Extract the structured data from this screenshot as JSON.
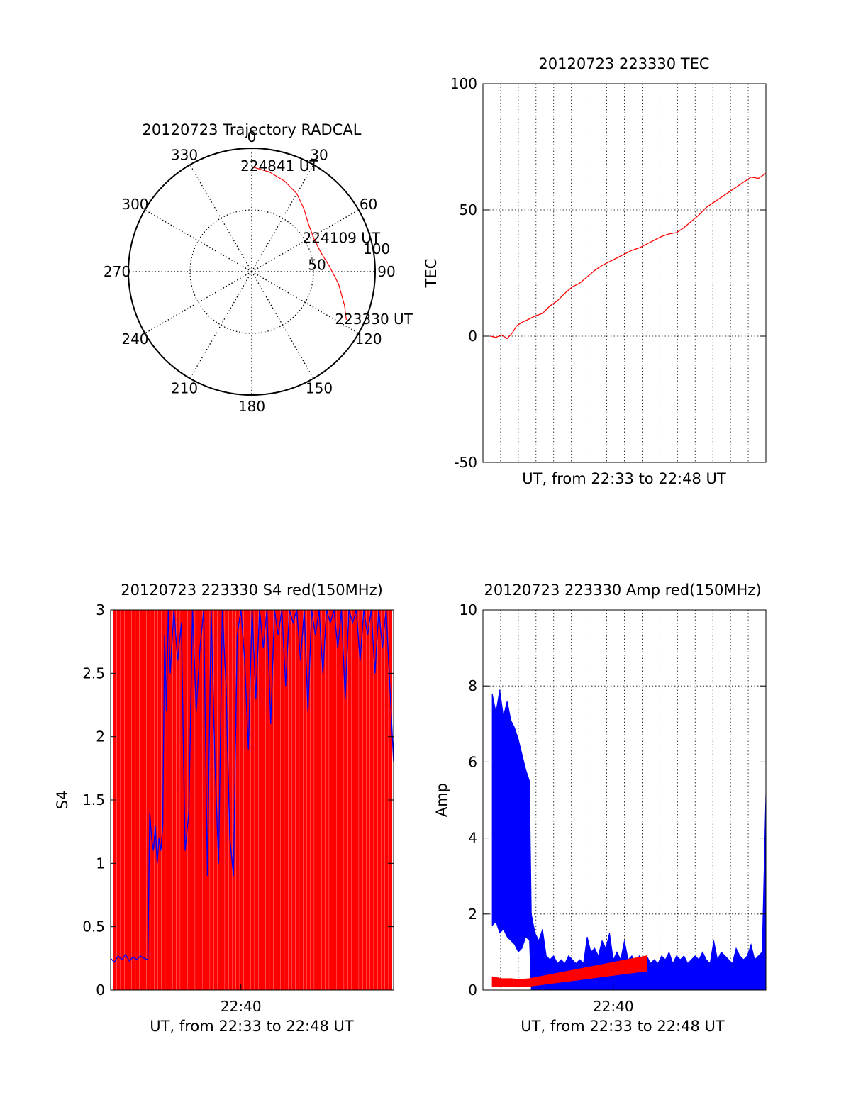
{
  "chart_data": [
    {
      "type": "polar",
      "title": "20120723 Trajectory RADCAL",
      "angle_labels": [
        "0",
        "30",
        "60",
        "90",
        "120",
        "150",
        "180",
        "210",
        "240",
        "270",
        "300",
        "330"
      ],
      "radial_labels": [
        "50",
        "100"
      ],
      "r_max": 100,
      "track": {
        "color": "#ff0000",
        "points": [
          {
            "az": 0,
            "r": 85
          },
          {
            "az": 10,
            "r": 82
          },
          {
            "az": 20,
            "r": 78
          },
          {
            "az": 30,
            "r": 73
          },
          {
            "az": 40,
            "r": 66
          },
          {
            "az": 50,
            "r": 60
          },
          {
            "az": 62,
            "r": 57
          },
          {
            "az": 74,
            "r": 58
          },
          {
            "az": 86,
            "r": 63
          },
          {
            "az": 98,
            "r": 71
          },
          {
            "az": 110,
            "r": 80
          },
          {
            "az": 117,
            "r": 86
          }
        ],
        "labels": [
          {
            "text": "224841 UT",
            "az": 0,
            "r": 85
          },
          {
            "text": "224109 UT",
            "az": 62,
            "r": 57
          },
          {
            "text": "223330 UT",
            "az": 117,
            "r": 86
          }
        ]
      }
    },
    {
      "type": "line",
      "title": "20120723 223330 TEC",
      "xlabel": "UT, from 22:33 to 22:48 UT",
      "ylabel": "TEC",
      "xlim": [
        0,
        15.2
      ],
      "ylim": [
        -50,
        100
      ],
      "yticks": [
        "100",
        "50",
        "0",
        "-50"
      ],
      "ytick_values": [
        100,
        50,
        0,
        -50
      ],
      "series": [
        {
          "color": "#ff0000",
          "x": [
            0.4,
            0.7,
            1.0,
            1.3,
            1.6,
            1.8,
            2.1,
            2.4,
            2.8,
            3.2,
            3.6,
            4.0,
            4.4,
            4.8,
            5.2,
            5.6,
            6.0,
            6.4,
            6.8,
            7.2,
            7.6,
            8.0,
            8.4,
            8.8,
            9.2,
            9.6,
            10.0,
            10.4,
            10.8,
            11.2,
            11.6,
            12.0,
            12.4,
            12.8,
            13.2,
            13.6,
            14.0,
            14.4,
            14.8,
            15.2
          ],
          "y": [
            0,
            -0.5,
            0.5,
            -1,
            1.5,
            4,
            5.5,
            6.5,
            8,
            9,
            12,
            14,
            17,
            19.5,
            21,
            23.5,
            26,
            28,
            29.5,
            31,
            32.5,
            34,
            35,
            36.5,
            38,
            39.5,
            40.5,
            41,
            43,
            45.5,
            48,
            51,
            53,
            55,
            57,
            59,
            61,
            63,
            62.5,
            64.5
          ]
        }
      ]
    },
    {
      "type": "line",
      "title": "20120723 223330 S4 red(150MHz)",
      "xlabel": "UT, from 22:33 to 22:48 UT",
      "ylabel": "S4",
      "xtick_label": "22:40",
      "xtick_value": 7.0,
      "xlim": [
        0,
        15.2
      ],
      "ylim": [
        0,
        3
      ],
      "yticks": [
        "3",
        "2.5",
        "2",
        "1.5",
        "1",
        "0.5",
        "0"
      ],
      "ytick_values": [
        3,
        2.5,
        2,
        1.5,
        1,
        0.5,
        0
      ],
      "series": [
        {
          "color": "#0000ff",
          "x": [
            0.0,
            0.2,
            0.4,
            0.6,
            0.8,
            1.0,
            1.2,
            1.4,
            1.6,
            1.8,
            2.0,
            2.1,
            2.2,
            2.3,
            2.4,
            2.5,
            2.6,
            2.7,
            2.8,
            2.9,
            3.0,
            3.1,
            3.2,
            3.4,
            3.6,
            3.8,
            4.0,
            4.2,
            4.4,
            4.6,
            4.8,
            5.0,
            5.2,
            5.4,
            5.6,
            5.8,
            6.0,
            6.2,
            6.4,
            6.6,
            6.8,
            7.0,
            7.2,
            7.4,
            7.6,
            7.8,
            8.0,
            8.2,
            8.4,
            8.6,
            8.8,
            9.0,
            9.2,
            9.4,
            9.6,
            9.8,
            10.0,
            10.2,
            10.4,
            10.6,
            10.8,
            11.0,
            11.2,
            11.4,
            11.6,
            11.8,
            12.0,
            12.2,
            12.4,
            12.6,
            12.8,
            13.0,
            13.2,
            13.4,
            13.6,
            13.8,
            14.0,
            14.2,
            14.4,
            14.6,
            14.8,
            15.0,
            15.2
          ],
          "y": [
            0.25,
            0.22,
            0.27,
            0.24,
            0.28,
            0.23,
            0.26,
            0.24,
            0.27,
            0.25,
            0.24,
            1.4,
            1.2,
            1.1,
            1.3,
            1.0,
            1.2,
            1.1,
            1.3,
            2.8,
            2.2,
            3.0,
            2.5,
            3.0,
            2.6,
            2.9,
            1.1,
            1.4,
            3.0,
            2.2,
            2.7,
            3.0,
            0.9,
            3.0,
            1.8,
            1.0,
            3.0,
            2.4,
            1.2,
            0.9,
            2.8,
            3.0,
            2.6,
            1.9,
            3.0,
            2.3,
            3.0,
            2.7,
            3.0,
            2.1,
            3.0,
            2.8,
            3.0,
            2.4,
            3.0,
            2.9,
            3.0,
            2.6,
            3.0,
            2.2,
            3.0,
            2.8,
            3.0,
            2.5,
            3.0,
            2.9,
            3.0,
            2.7,
            3.0,
            2.3,
            3.0,
            2.9,
            3.0,
            2.6,
            3.0,
            2.8,
            3.0,
            2.5,
            3.0,
            2.7,
            3.0,
            2.4,
            1.8
          ]
        },
        {
          "color": "#ff0000",
          "kind": "vertical-lines",
          "x_density_note": "",
          "x": [
            0.25,
            0.45,
            0.65,
            0.85,
            1.05,
            1.25,
            1.45,
            1.65,
            1.85,
            2.05,
            2.25,
            2.45,
            2.65,
            2.85,
            3.05,
            3.25,
            3.45,
            3.65,
            3.85,
            4.05,
            4.25,
            4.45,
            4.65,
            4.85,
            5.05,
            5.25,
            5.45,
            5.65,
            5.85,
            6.05,
            6.25,
            6.45,
            6.65,
            6.85,
            7.05,
            7.25,
            7.45,
            7.65,
            7.85,
            8.05,
            8.25,
            8.45,
            8.65,
            8.85,
            9.05,
            9.25,
            9.45,
            9.65,
            9.85,
            10.05,
            10.25,
            10.45,
            10.65,
            10.85,
            11.05,
            11.25,
            11.45,
            11.65,
            11.85,
            12.05,
            12.25,
            12.45,
            12.65,
            12.85,
            13.05,
            13.25,
            13.45,
            13.65,
            13.85,
            14.05,
            14.25,
            14.45,
            14.65,
            14.85,
            15.05
          ],
          "y": [
            3,
            3,
            3,
            3,
            3,
            3,
            3,
            3,
            3,
            3,
            3,
            3,
            3,
            3,
            3,
            3,
            3,
            3,
            3,
            3,
            3,
            3,
            3,
            3,
            3,
            3,
            3,
            3,
            3,
            3,
            3,
            3,
            3,
            3,
            3,
            3,
            3,
            3,
            3,
            3,
            3,
            3,
            3,
            3,
            3,
            3,
            3,
            3,
            3,
            3,
            3,
            3,
            3,
            3,
            3,
            3,
            3,
            3,
            3,
            3,
            3,
            3,
            3,
            3,
            3,
            3,
            3,
            3,
            3,
            3,
            3,
            3,
            3,
            3,
            3
          ]
        }
      ]
    },
    {
      "type": "line",
      "title": "20120723 223330 Amp red(150MHz)",
      "xlabel": "UT, from 22:33 to 22:48 UT",
      "ylabel": "Amp",
      "xtick_label": "22:40",
      "xtick_value": 7.0,
      "xlim": [
        0,
        15.2
      ],
      "ylim": [
        0,
        10
      ],
      "yticks": [
        "10",
        "8",
        "6",
        "4",
        "2",
        "0"
      ],
      "ytick_values": [
        10,
        8,
        6,
        4,
        2,
        0
      ],
      "series": [
        {
          "color": "#0000ff",
          "kind": "envelope",
          "x": [
            0.5,
            0.7,
            0.9,
            1.1,
            1.3,
            1.5,
            1.7,
            1.9,
            2.1,
            2.3,
            2.5,
            2.6,
            2.8,
            3.0,
            3.2,
            3.4,
            3.6,
            3.8,
            4.0,
            4.2,
            4.4,
            4.6,
            4.8,
            5.0,
            5.2,
            5.4,
            5.6,
            5.8,
            6.0,
            6.2,
            6.4,
            6.6,
            6.8,
            7.0,
            7.2,
            7.4,
            7.6,
            7.8,
            8.0,
            8.2,
            8.4,
            8.6,
            8.8,
            9.0,
            9.2,
            9.4,
            9.6,
            9.8,
            10.0,
            10.2,
            10.4,
            10.6,
            10.8,
            11.0,
            11.2,
            11.4,
            11.6,
            11.8,
            12.0,
            12.2,
            12.4,
            12.6,
            12.8,
            13.0,
            13.2,
            13.4,
            13.6,
            13.8,
            14.0,
            14.2,
            14.4,
            14.6,
            14.8,
            15.0,
            15.2
          ],
          "high": [
            7.8,
            7.3,
            7.9,
            7.2,
            7.6,
            7.1,
            6.9,
            6.6,
            6.2,
            5.8,
            5.5,
            2.0,
            1.5,
            1.3,
            1.6,
            0.9,
            0.8,
            0.9,
            0.7,
            0.8,
            0.7,
            0.9,
            0.8,
            0.7,
            0.8,
            0.7,
            1.4,
            1.0,
            1.1,
            0.9,
            1.3,
            1.1,
            1.5,
            0.8,
            1.0,
            0.8,
            1.3,
            0.8,
            0.9,
            0.7,
            0.9,
            0.8,
            0.9,
            0.7,
            0.8,
            0.7,
            0.9,
            0.8,
            1.0,
            0.7,
            0.9,
            0.8,
            0.9,
            0.7,
            0.8,
            0.9,
            0.8,
            1.0,
            0.8,
            0.7,
            1.3,
            0.8,
            1.0,
            0.9,
            0.8,
            0.7,
            1.1,
            0.9,
            0.8,
            0.9,
            1.2,
            0.8,
            0.9,
            1.0,
            5.2
          ],
          "low": [
            1.7,
            1.8,
            1.5,
            1.6,
            1.4,
            1.3,
            1.2,
            1.0,
            1.1,
            1.4,
            1.3,
            0.0,
            0.0,
            0.0,
            0.0,
            0.0,
            0.0,
            0.0,
            0.0,
            0.0,
            0.0,
            0.0,
            0.0,
            0.0,
            0.0,
            0.0,
            0.0,
            0.0,
            0.0,
            0.0,
            0.0,
            0.0,
            0.0,
            0.0,
            0.0,
            0.0,
            0.0,
            0.0,
            0.0,
            0.0,
            0.0,
            0.0,
            0.0,
            0.0,
            0.0,
            0.0,
            0.0,
            0.0,
            0.0,
            0.0,
            0.0,
            0.0,
            0.0,
            0.0,
            0.0,
            0.0,
            0.0,
            0.0,
            0.0,
            0.0,
            0.0,
            0.0,
            0.0,
            0.0,
            0.0,
            0.0,
            0.0,
            0.0,
            0.0,
            0.0,
            0.0,
            0.0,
            0.0,
            0.0,
            0.0
          ]
        },
        {
          "color": "#ff0000",
          "kind": "envelope",
          "x": [
            0.5,
            1.0,
            1.5,
            2.0,
            2.5,
            8.8
          ],
          "high": [
            0.35,
            0.3,
            0.3,
            0.28,
            0.3,
            0.9
          ],
          "low": [
            0.1,
            0.1,
            0.1,
            0.1,
            0.1,
            0.5
          ]
        }
      ]
    }
  ]
}
